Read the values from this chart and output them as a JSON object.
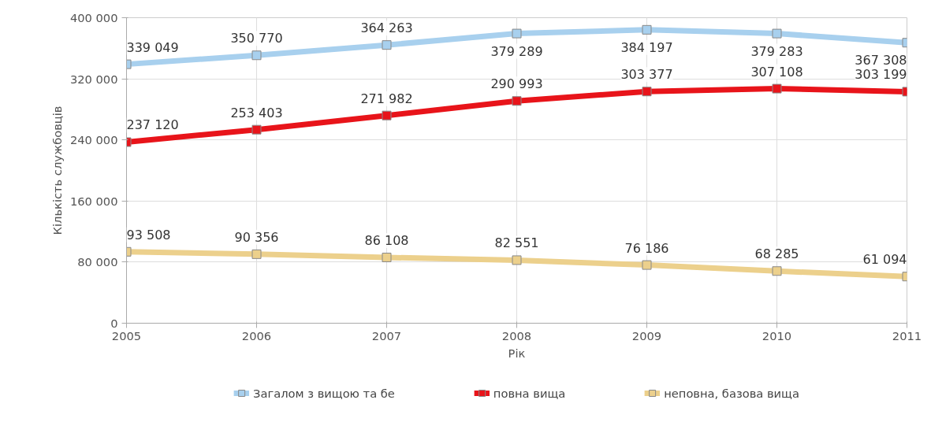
{
  "chart_data": {
    "type": "line",
    "xlabel": "Рік",
    "ylabel": "Кількість службовців",
    "x": [
      2005,
      2006,
      2007,
      2008,
      2009,
      2010,
      2011
    ],
    "series": [
      {
        "name": "Загалом з вищою та бе",
        "color": "#a8d0ee",
        "values": [
          339049,
          350770,
          364263,
          379289,
          384197,
          379283,
          367308
        ]
      },
      {
        "name": "повна вища",
        "color": "#e8141a",
        "values": [
          237120,
          253403,
          271982,
          290993,
          303377,
          307108,
          303199
        ]
      },
      {
        "name": "неповна, базова вища",
        "color": "#ecd08c",
        "values": [
          93508,
          90356,
          86108,
          82551,
          76186,
          68285,
          61094
        ]
      }
    ],
    "xlim": [
      2005,
      2011
    ],
    "xticks": [
      2005,
      2006,
      2007,
      2008,
      2009,
      2010,
      2011
    ],
    "ylim": [
      0,
      400000
    ],
    "yticks": [
      0,
      {
        "value": 80000,
        "label": "80 000"
      },
      {
        "value": 160000,
        "label": "160 000"
      },
      {
        "value": 240000,
        "label": "240 000"
      },
      {
        "value": 320000,
        "label": "320 000"
      },
      {
        "value": 400000,
        "label": "400 000"
      }
    ],
    "grid": true,
    "legend": "bottom",
    "marker": "square",
    "line_style": "solid",
    "data_labels": true
  }
}
